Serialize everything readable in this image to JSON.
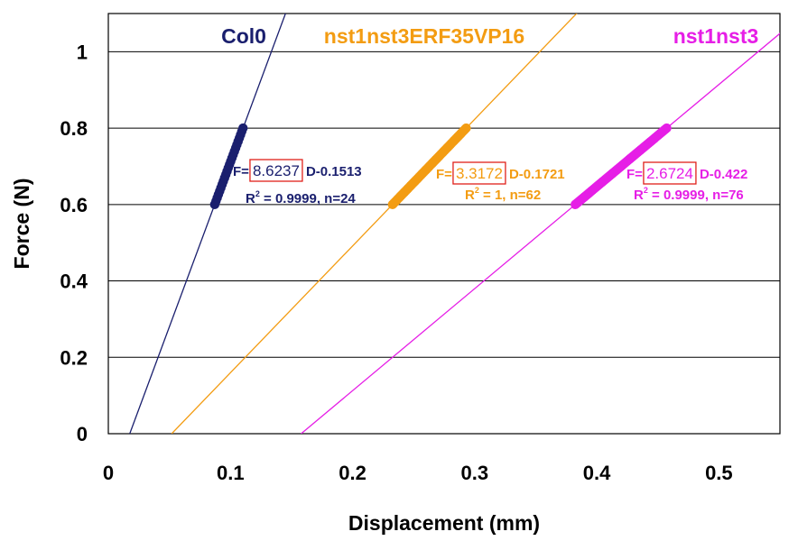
{
  "chart_data": {
    "type": "scatter",
    "xlabel": "Displacement (mm)",
    "ylabel": "Force (N)",
    "xlim": [
      0,
      0.55
    ],
    "ylim": [
      0,
      1.1
    ],
    "x_ticks": [
      "0",
      "0.1",
      "0.2",
      "0.3",
      "0.4",
      "0.5"
    ],
    "y_ticks": [
      "0",
      "0.2",
      "0.4",
      "0.6",
      "0.8",
      "1"
    ],
    "grid": "horizontal",
    "series": [
      {
        "name": "Col0",
        "color": "#1a1f6e",
        "slope": 8.6237,
        "intercept": -0.1513,
        "points_x_range": [
          0.0877,
          0.1103
        ],
        "points_y_range": [
          0.6,
          0.8
        ],
        "n": 24,
        "equation": {
          "prefix": "F=",
          "slope_text": "8.6237",
          "suffix": "D-0.1513",
          "r2_label": "R",
          "r2_sup": "2",
          "r2_rest": " = 0.9999, n=24"
        }
      },
      {
        "name": "nst1nst3ERF35VP16",
        "color": "#f39c12",
        "slope": 3.3172,
        "intercept": -0.1721,
        "points_x_range": [
          0.2328,
          0.293
        ],
        "points_y_range": [
          0.6,
          0.8
        ],
        "n": 62,
        "equation": {
          "prefix": "F=",
          "slope_text": "3.3172",
          "suffix": "D-0.1721",
          "r2_label": "R",
          "r2_sup": "2",
          "r2_rest": " = 1, n=62"
        }
      },
      {
        "name": "nst1nst3",
        "color": "#e61ee6",
        "slope": 2.6724,
        "intercept": -0.422,
        "points_x_range": [
          0.3825,
          0.4573
        ],
        "points_y_range": [
          0.6,
          0.8
        ],
        "n": 76,
        "equation": {
          "prefix": "F=",
          "slope_text": "2.6724",
          "suffix": "D-0.422",
          "r2_label": "R",
          "r2_sup": "2",
          "r2_rest": " = 0.9999, n=76"
        }
      }
    ],
    "highlight_box_color": "#e0201a"
  }
}
